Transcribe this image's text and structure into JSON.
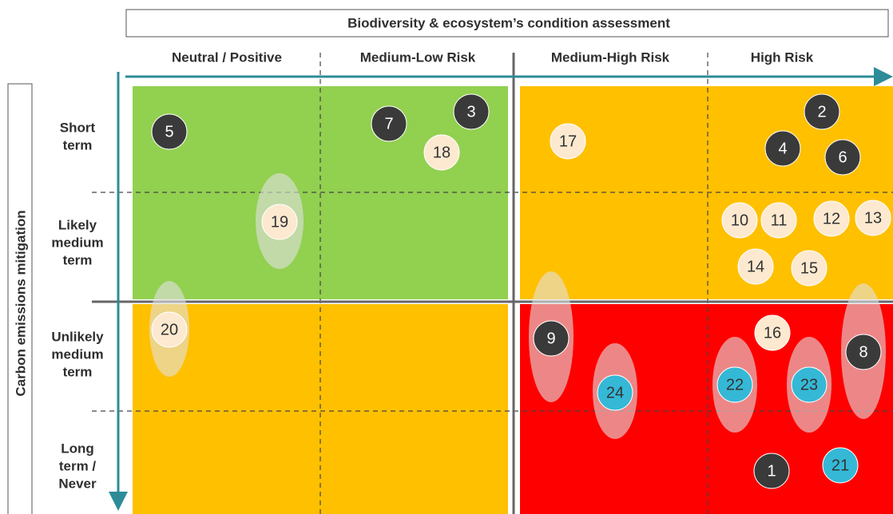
{
  "title": "Biodiversity & ecosystem’s condition assessment",
  "columns": [
    "Neutral / Positive",
    "Medium-Low Risk",
    "Medium-High Risk",
    "High Risk"
  ],
  "y_axis_label": "Carbon emissions mitigation",
  "rows": [
    [
      "Short",
      "term"
    ],
    [
      "Likely",
      "medium",
      "term"
    ],
    [
      "Unlikely",
      "medium",
      "term"
    ],
    [
      "Long",
      "term /",
      "Never"
    ]
  ],
  "nodes": [
    {
      "label": "5",
      "color": "#3a3a3a"
    },
    {
      "label": "7",
      "color": "#3a3a3a"
    },
    {
      "label": "3",
      "color": "#3a3a3a"
    },
    {
      "label": "18",
      "color": "#fde9d0"
    },
    {
      "label": "17",
      "color": "#fde9d0"
    },
    {
      "label": "2",
      "color": "#3a3a3a"
    },
    {
      "label": "4",
      "color": "#3a3a3a"
    },
    {
      "label": "6",
      "color": "#3a3a3a"
    },
    {
      "label": "19",
      "color": "#fde9d0"
    },
    {
      "label": "10",
      "color": "#fde9d0"
    },
    {
      "label": "11",
      "color": "#fde9d0"
    },
    {
      "label": "12",
      "color": "#fde9d0"
    },
    {
      "label": "13",
      "color": "#fde9d0"
    },
    {
      "label": "14",
      "color": "#fde9d0"
    },
    {
      "label": "15",
      "color": "#fde9d0"
    },
    {
      "label": "20",
      "color": "#fde9d0"
    },
    {
      "label": "9",
      "color": "#3a3a3a"
    },
    {
      "label": "16",
      "color": "#fde9d0"
    },
    {
      "label": "8",
      "color": "#3a3a3a"
    },
    {
      "label": "22",
      "color": "#35b8d6"
    },
    {
      "label": "23",
      "color": "#35b8d6"
    },
    {
      "label": "24",
      "color": "#35b8d6"
    },
    {
      "label": "1",
      "color": "#3a3a3a"
    },
    {
      "label": "21",
      "color": "#35b8d6"
    }
  ]
}
